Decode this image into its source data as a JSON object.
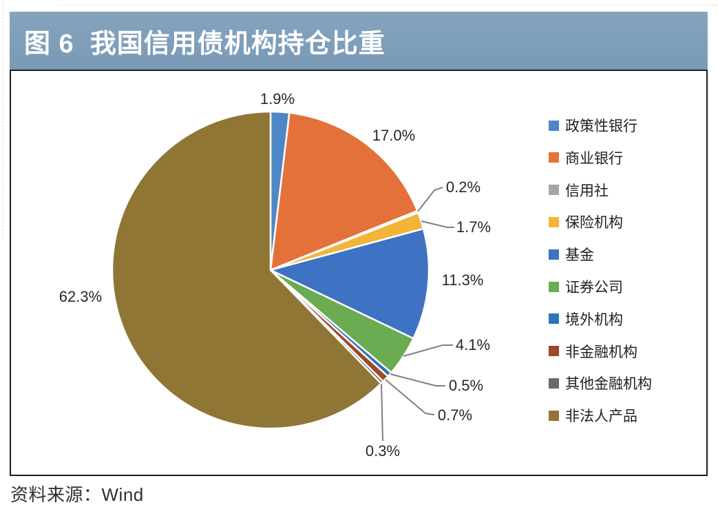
{
  "page": {
    "title": "图 6  我国信用债机构持仓比重",
    "source_label": "资料来源：Wind",
    "header_bg": "#7E9EBA",
    "header_text_color": "#FFFFFF"
  },
  "chart_data": {
    "type": "pie",
    "title": "图 6 我国信用债机构持仓比重",
    "legend_position": "right",
    "direction": "clockwise",
    "start_angle_deg": 0,
    "unit": "%",
    "categories": [
      "政策性银行",
      "商业银行",
      "信用社",
      "保险机构",
      "基金",
      "证券公司",
      "境外机构",
      "非金融机构",
      "其他金融机构",
      "非法人产品"
    ],
    "values": [
      1.9,
      17.0,
      0.2,
      1.7,
      11.3,
      4.1,
      0.5,
      0.7,
      0.3,
      62.3
    ],
    "labels": [
      "1.9%",
      "17.0%",
      "0.2%",
      "1.7%",
      "11.3%",
      "4.1%",
      "0.5%",
      "0.7%",
      "0.3%",
      "62.3%"
    ],
    "colors": [
      "#4E87C6",
      "#E5713A",
      "#A5A5A5",
      "#F2B53A",
      "#3E72C3",
      "#6BAB51",
      "#2E74B5",
      "#9D4A26",
      "#6A6A6A",
      "#907634"
    ],
    "leader_line_color": "#7f7f7f",
    "slice_border_color": "#ffffff",
    "source": "资料来源：Wind"
  }
}
